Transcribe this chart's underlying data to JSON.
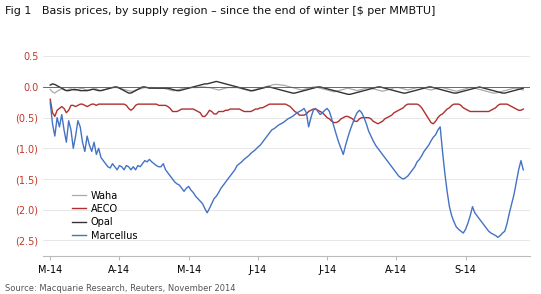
{
  "title": "Fig 1   Basis prices, by supply region – since the end of winter [$ per MMBTU]",
  "source": "Source: Macquarie Research, Reuters, November 2014",
  "xtick_labels": [
    "M-14",
    "A-14",
    "M-14",
    "J-14",
    "J-14",
    "A-14",
    "S-14"
  ],
  "ytick_labels": [
    "0.5",
    "0.0",
    "(0.5)",
    "(1.0)",
    "(1.5)",
    "(2.0)",
    "(2.5)"
  ],
  "ytick_values": [
    0.5,
    0.0,
    -0.5,
    -1.0,
    -1.5,
    -2.0,
    -2.5
  ],
  "ylim": [
    -2.75,
    0.65
  ],
  "legend": [
    {
      "label": "AECO",
      "color": "#b03030"
    },
    {
      "label": "Opal",
      "color": "#333333"
    },
    {
      "label": "Marcellus",
      "color": "#4472c4"
    },
    {
      "label": "Waha",
      "color": "#aaaaaa"
    }
  ],
  "background_color": "#ffffff",
  "aeco": [
    -0.2,
    -0.42,
    -0.48,
    -0.38,
    -0.35,
    -0.32,
    -0.35,
    -0.42,
    -0.38,
    -0.3,
    -0.3,
    -0.32,
    -0.3,
    -0.28,
    -0.28,
    -0.3,
    -0.32,
    -0.3,
    -0.28,
    -0.28,
    -0.3,
    -0.28,
    -0.28,
    -0.28,
    -0.28,
    -0.28,
    -0.28,
    -0.28,
    -0.28,
    -0.28,
    -0.28,
    -0.28,
    -0.28,
    -0.3,
    -0.35,
    -0.38,
    -0.35,
    -0.3,
    -0.28,
    -0.28,
    -0.28,
    -0.28,
    -0.28,
    -0.28,
    -0.28,
    -0.28,
    -0.28,
    -0.3,
    -0.3,
    -0.3,
    -0.3,
    -0.32,
    -0.35,
    -0.4,
    -0.4,
    -0.4,
    -0.38,
    -0.36,
    -0.36,
    -0.36,
    -0.36,
    -0.36,
    -0.36,
    -0.38,
    -0.4,
    -0.42,
    -0.48,
    -0.48,
    -0.44,
    -0.38,
    -0.4,
    -0.44,
    -0.44,
    -0.4,
    -0.4,
    -0.4,
    -0.38,
    -0.38,
    -0.36,
    -0.36,
    -0.36,
    -0.36,
    -0.36,
    -0.38,
    -0.4,
    -0.4,
    -0.4,
    -0.4,
    -0.38,
    -0.36,
    -0.36,
    -0.34,
    -0.34,
    -0.32,
    -0.3,
    -0.28,
    -0.28,
    -0.28,
    -0.28,
    -0.28,
    -0.28,
    -0.28,
    -0.28,
    -0.3,
    -0.32,
    -0.36,
    -0.4,
    -0.42,
    -0.46,
    -0.46,
    -0.46,
    -0.44,
    -0.4,
    -0.38,
    -0.36,
    -0.36,
    -0.38,
    -0.4,
    -0.42,
    -0.46,
    -0.5,
    -0.52,
    -0.56,
    -0.58,
    -0.58,
    -0.56,
    -0.52,
    -0.5,
    -0.48,
    -0.48,
    -0.5,
    -0.52,
    -0.56,
    -0.56,
    -0.52,
    -0.5,
    -0.5,
    -0.5,
    -0.5,
    -0.52,
    -0.56,
    -0.58,
    -0.6,
    -0.58,
    -0.56,
    -0.52,
    -0.5,
    -0.48,
    -0.46,
    -0.42,
    -0.4,
    -0.38,
    -0.36,
    -0.34,
    -0.3,
    -0.28,
    -0.28,
    -0.28,
    -0.28,
    -0.28,
    -0.3,
    -0.34,
    -0.4,
    -0.46,
    -0.52,
    -0.58,
    -0.6,
    -0.56,
    -0.5,
    -0.46,
    -0.44,
    -0.4,
    -0.36,
    -0.34,
    -0.3,
    -0.28,
    -0.28,
    -0.28,
    -0.3,
    -0.34,
    -0.36,
    -0.38,
    -0.4,
    -0.4,
    -0.4,
    -0.4,
    -0.4,
    -0.4,
    -0.4,
    -0.4,
    -0.4,
    -0.38,
    -0.36,
    -0.34,
    -0.3,
    -0.28,
    -0.28,
    -0.28,
    -0.28,
    -0.3,
    -0.32,
    -0.34,
    -0.36,
    -0.38,
    -0.38,
    -0.36
  ],
  "opal": [
    0.03,
    0.05,
    0.04,
    0.02,
    0.0,
    -0.02,
    -0.04,
    -0.06,
    -0.06,
    -0.05,
    -0.04,
    -0.04,
    -0.05,
    -0.06,
    -0.06,
    -0.06,
    -0.06,
    -0.05,
    -0.04,
    -0.04,
    -0.05,
    -0.06,
    -0.06,
    -0.05,
    -0.04,
    -0.03,
    -0.02,
    -0.01,
    0.0,
    0.0,
    -0.02,
    -0.04,
    -0.06,
    -0.08,
    -0.1,
    -0.1,
    -0.08,
    -0.06,
    -0.04,
    -0.02,
    0.0,
    0.0,
    -0.01,
    -0.02,
    -0.02,
    -0.02,
    -0.02,
    -0.02,
    -0.02,
    -0.02,
    -0.02,
    -0.02,
    -0.03,
    -0.04,
    -0.05,
    -0.06,
    -0.06,
    -0.05,
    -0.04,
    -0.03,
    -0.02,
    -0.01,
    0.0,
    0.01,
    0.02,
    0.03,
    0.04,
    0.05,
    0.05,
    0.06,
    0.07,
    0.08,
    0.09,
    0.08,
    0.07,
    0.06,
    0.05,
    0.04,
    0.03,
    0.02,
    0.01,
    0.0,
    -0.01,
    -0.02,
    -0.03,
    -0.04,
    -0.05,
    -0.06,
    -0.06,
    -0.05,
    -0.04,
    -0.03,
    -0.02,
    -0.01,
    0.0,
    0.0,
    -0.01,
    -0.02,
    -0.03,
    -0.04,
    -0.05,
    -0.06,
    -0.07,
    -0.08,
    -0.09,
    -0.1,
    -0.1,
    -0.09,
    -0.08,
    -0.07,
    -0.06,
    -0.05,
    -0.04,
    -0.03,
    -0.02,
    -0.01,
    0.0,
    0.0,
    -0.01,
    -0.02,
    -0.03,
    -0.04,
    -0.05,
    -0.06,
    -0.07,
    -0.08,
    -0.09,
    -0.1,
    -0.11,
    -0.12,
    -0.12,
    -0.11,
    -0.1,
    -0.09,
    -0.08,
    -0.07,
    -0.06,
    -0.05,
    -0.04,
    -0.03,
    -0.02,
    -0.01,
    0.0,
    0.0,
    -0.01,
    -0.02,
    -0.03,
    -0.04,
    -0.05,
    -0.06,
    -0.07,
    -0.08,
    -0.09,
    -0.1,
    -0.1,
    -0.09,
    -0.08,
    -0.07,
    -0.06,
    -0.05,
    -0.04,
    -0.03,
    -0.02,
    -0.01,
    0.0,
    0.0,
    -0.01,
    -0.02,
    -0.03,
    -0.04,
    -0.05,
    -0.06,
    -0.07,
    -0.08,
    -0.09,
    -0.1,
    -0.1,
    -0.09,
    -0.08,
    -0.07,
    -0.06,
    -0.05,
    -0.04,
    -0.03,
    -0.02,
    -0.01,
    0.0,
    -0.01,
    -0.02,
    -0.03,
    -0.04,
    -0.05,
    -0.06,
    -0.07,
    -0.08,
    -0.09,
    -0.1,
    -0.1,
    -0.09,
    -0.08,
    -0.07,
    -0.06,
    -0.05,
    -0.04,
    -0.03,
    -0.02
  ],
  "marcellus": [
    -0.25,
    -0.6,
    -0.8,
    -0.5,
    -0.65,
    -0.45,
    -0.7,
    -0.9,
    -0.55,
    -0.7,
    -1.0,
    -0.8,
    -0.55,
    -0.65,
    -0.9,
    -1.05,
    -0.8,
    -0.95,
    -1.05,
    -0.9,
    -1.1,
    -1.0,
    -1.15,
    -1.2,
    -1.25,
    -1.3,
    -1.32,
    -1.25,
    -1.3,
    -1.35,
    -1.28,
    -1.3,
    -1.35,
    -1.28,
    -1.3,
    -1.35,
    -1.3,
    -1.35,
    -1.28,
    -1.3,
    -1.25,
    -1.2,
    -1.22,
    -1.18,
    -1.22,
    -1.25,
    -1.28,
    -1.3,
    -1.3,
    -1.25,
    -1.35,
    -1.4,
    -1.45,
    -1.5,
    -1.55,
    -1.58,
    -1.6,
    -1.65,
    -1.7,
    -1.65,
    -1.62,
    -1.68,
    -1.72,
    -1.78,
    -1.82,
    -1.86,
    -1.9,
    -1.98,
    -2.05,
    -1.98,
    -1.9,
    -1.82,
    -1.78,
    -1.72,
    -1.65,
    -1.6,
    -1.55,
    -1.5,
    -1.45,
    -1.4,
    -1.35,
    -1.28,
    -1.25,
    -1.22,
    -1.18,
    -1.15,
    -1.12,
    -1.08,
    -1.05,
    -1.02,
    -0.98,
    -0.95,
    -0.9,
    -0.85,
    -0.8,
    -0.75,
    -0.7,
    -0.68,
    -0.65,
    -0.62,
    -0.6,
    -0.58,
    -0.55,
    -0.52,
    -0.5,
    -0.48,
    -0.45,
    -0.42,
    -0.4,
    -0.38,
    -0.35,
    -0.42,
    -0.65,
    -0.5,
    -0.38,
    -0.35,
    -0.4,
    -0.45,
    -0.42,
    -0.38,
    -0.35,
    -0.4,
    -0.52,
    -0.65,
    -0.78,
    -0.9,
    -1.0,
    -1.1,
    -0.95,
    -0.82,
    -0.7,
    -0.6,
    -0.5,
    -0.42,
    -0.38,
    -0.42,
    -0.5,
    -0.6,
    -0.72,
    -0.8,
    -0.88,
    -0.95,
    -1.0,
    -1.05,
    -1.1,
    -1.15,
    -1.2,
    -1.25,
    -1.3,
    -1.35,
    -1.4,
    -1.45,
    -1.48,
    -1.5,
    -1.48,
    -1.45,
    -1.4,
    -1.35,
    -1.3,
    -1.22,
    -1.18,
    -1.12,
    -1.05,
    -1.0,
    -0.95,
    -0.88,
    -0.82,
    -0.78,
    -0.7,
    -0.65,
    -1.05,
    -1.4,
    -1.7,
    -1.95,
    -2.1,
    -2.2,
    -2.28,
    -2.32,
    -2.35,
    -2.38,
    -2.32,
    -2.22,
    -2.1,
    -1.95,
    -2.05,
    -2.1,
    -2.15,
    -2.2,
    -2.25,
    -2.3,
    -2.35,
    -2.38,
    -2.4,
    -2.42,
    -2.45,
    -2.42,
    -2.38,
    -2.35,
    -2.22,
    -2.05,
    -1.9,
    -1.75,
    -1.55,
    -1.35,
    -1.2,
    -1.35
  ],
  "waha": [
    -0.04,
    -0.08,
    -0.1,
    -0.07,
    -0.05,
    -0.03,
    -0.05,
    -0.06,
    -0.04,
    -0.03,
    -0.05,
    -0.06,
    -0.04,
    -0.03,
    -0.02,
    -0.04,
    -0.05,
    -0.06,
    -0.04,
    -0.03,
    -0.03,
    -0.05,
    -0.06,
    -0.05,
    -0.04,
    -0.03,
    -0.02,
    -0.01,
    -0.01,
    -0.01,
    -0.02,
    -0.03,
    -0.04,
    -0.05,
    -0.06,
    -0.07,
    -0.07,
    -0.05,
    -0.04,
    -0.03,
    -0.02,
    -0.01,
    -0.01,
    -0.01,
    -0.01,
    -0.01,
    -0.02,
    -0.02,
    -0.02,
    -0.02,
    -0.03,
    -0.04,
    -0.05,
    -0.06,
    -0.06,
    -0.05,
    -0.04,
    -0.03,
    -0.02,
    -0.01,
    -0.01,
    -0.01,
    -0.01,
    -0.01,
    -0.01,
    0.0,
    0.0,
    0.0,
    -0.01,
    -0.01,
    -0.02,
    -0.03,
    -0.04,
    -0.05,
    -0.04,
    -0.03,
    -0.02,
    -0.01,
    -0.01,
    -0.01,
    -0.01,
    -0.01,
    -0.02,
    -0.03,
    -0.04,
    -0.05,
    -0.06,
    -0.07,
    -0.05,
    -0.04,
    -0.03,
    -0.02,
    -0.01,
    0.0,
    0.01,
    0.02,
    0.03,
    0.04,
    0.04,
    0.04,
    0.03,
    0.03,
    0.02,
    0.01,
    0.0,
    -0.01,
    -0.02,
    -0.03,
    -0.04,
    -0.05,
    -0.04,
    -0.03,
    -0.02,
    -0.01,
    0.0,
    0.0,
    -0.01,
    -0.02,
    -0.03,
    -0.04,
    -0.05,
    -0.06,
    -0.07,
    -0.08,
    -0.07,
    -0.06,
    -0.05,
    -0.04,
    -0.03,
    -0.02,
    -0.03,
    -0.04,
    -0.05,
    -0.06,
    -0.05,
    -0.04,
    -0.03,
    -0.02,
    -0.02,
    -0.02,
    -0.03,
    -0.04,
    -0.05,
    -0.06,
    -0.07,
    -0.06,
    -0.05,
    -0.04,
    -0.03,
    -0.01,
    -0.01,
    -0.01,
    -0.02,
    -0.03,
    -0.04,
    -0.05,
    -0.04,
    -0.03,
    -0.02,
    -0.01,
    -0.01,
    -0.01,
    -0.02,
    -0.03,
    -0.04,
    -0.05,
    -0.04,
    -0.03,
    -0.02,
    -0.01,
    -0.01,
    -0.02,
    -0.03,
    -0.04,
    -0.05,
    -0.06,
    -0.07,
    -0.06,
    -0.05,
    -0.04,
    -0.03,
    -0.02,
    -0.01,
    -0.01,
    -0.02,
    -0.03,
    -0.04,
    -0.05,
    -0.06,
    -0.07,
    -0.08,
    -0.09,
    -0.1,
    -0.1,
    -0.09,
    -0.08,
    -0.07,
    -0.06,
    -0.05,
    -0.04,
    -0.03,
    -0.02,
    -0.02,
    -0.03,
    -0.04,
    -0.05
  ]
}
